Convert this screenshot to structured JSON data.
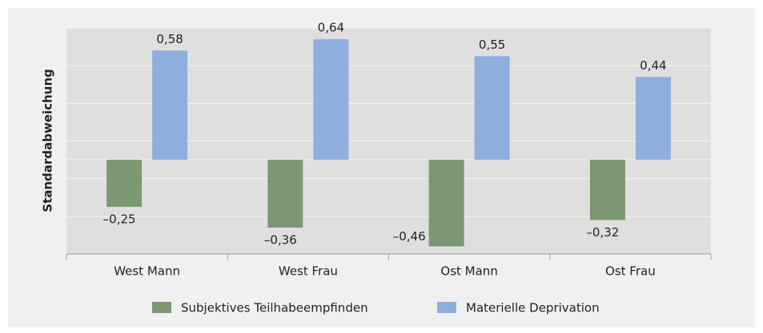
{
  "chart_data": {
    "type": "bar",
    "y_label": "Standardabweichung",
    "categories": [
      "West Mann",
      "West Frau",
      "Ost Mann",
      "Ost Frau"
    ],
    "series": [
      {
        "name": "Subjektives Teilhabeempfinden",
        "color": "#7b9873",
        "values": [
          -0.25,
          -0.36,
          -0.46,
          -0.32
        ],
        "value_labels": [
          "–0,25",
          "–0,36",
          "–0,46",
          "–0,32"
        ]
      },
      {
        "name": "Materielle Deprivation",
        "color": "#8eaede",
        "values": [
          0.58,
          0.64,
          0.55,
          0.44
        ],
        "value_labels": [
          "0,58",
          "0,64",
          "0,55",
          "0,44"
        ]
      }
    ],
    "ylim": [
      -0.5,
      0.7
    ],
    "yticks": [
      -0.5,
      -0.3,
      -0.1,
      0,
      0.1,
      0.3,
      0.5,
      0.7
    ],
    "grid": true
  }
}
